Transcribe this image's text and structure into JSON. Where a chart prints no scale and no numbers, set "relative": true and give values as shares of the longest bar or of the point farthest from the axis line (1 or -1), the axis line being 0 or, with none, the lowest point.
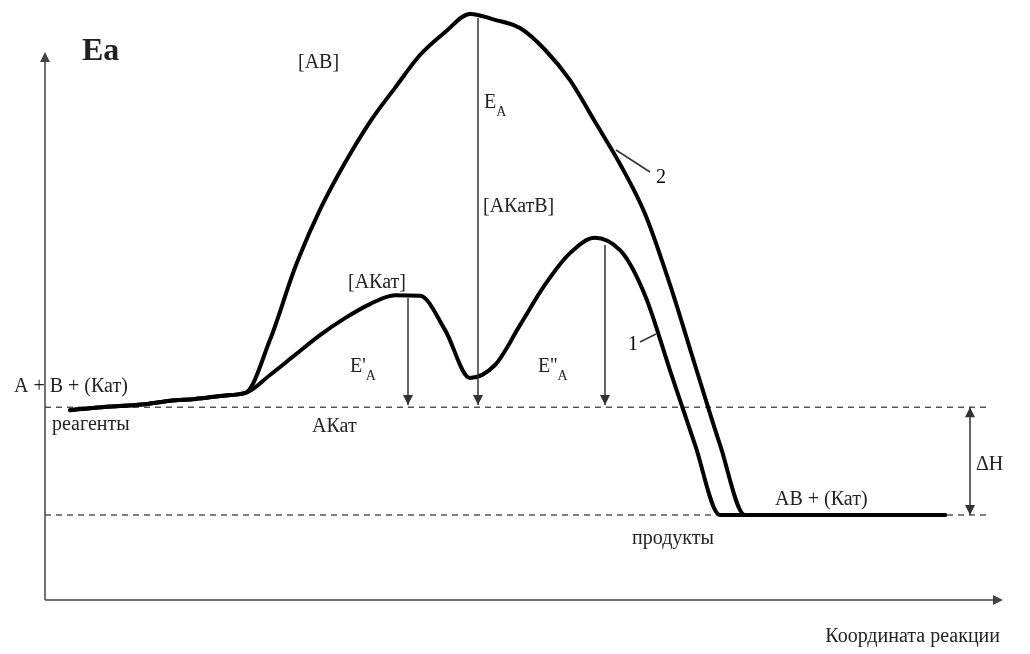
{
  "chart_data": {
    "type": "line",
    "relative": true,
    "ylabel": "Ea",
    "xlabel": "Координата реакции",
    "categories": [
      null,
      null,
      null,
      null,
      null,
      null,
      null,
      null,
      null,
      null,
      null,
      null,
      null,
      null,
      null,
      null,
      null,
      null,
      null,
      null,
      null,
      null,
      null,
      null,
      null,
      null,
      null,
      null,
      null,
      null,
      null,
      null,
      null,
      null,
      null,
      null
    ],
    "series": [
      {
        "name": "1",
        "color": "#000000",
        "values": [
          0.324,
          0.328,
          0.331,
          0.334,
          0.34,
          0.343,
          0.348,
          0.353,
          0.384,
          0.418,
          0.452,
          0.481,
          0.505,
          0.52,
          0.519,
          0.461,
          0.379,
          0.401,
          0.469,
          0.538,
          0.592,
          0.618,
          0.597,
          0.52,
          0.392,
          0.265,
          0.145,
          0.145,
          0.145,
          0.145,
          0.145,
          0.145,
          0.145,
          0.145,
          0.145,
          0.145
        ]
      },
      {
        "name": "2",
        "color": "#000000",
        "values": [
          0.324,
          0.328,
          0.331,
          0.334,
          0.34,
          0.343,
          0.348,
          0.353,
          0.444,
          0.567,
          0.666,
          0.746,
          0.816,
          0.874,
          0.93,
          0.969,
          1.0,
          0.99,
          0.976,
          0.939,
          0.887,
          0.816,
          0.744,
          0.659,
          0.538,
          0.401,
          0.265,
          0.145,
          0.145,
          0.145,
          0.145,
          0.145,
          0.145,
          0.145,
          0.145,
          0.145
        ]
      }
    ],
    "ref_lines": [
      {
        "axis": "y",
        "value": 0.329,
        "line_style": "dashed"
      },
      {
        "axis": "y",
        "value": 0.145,
        "line_style": "dashed"
      }
    ],
    "annotations": [
      "[АВ]",
      "E$_{A}$",
      "[АКатВ]",
      "[АКат]",
      "E'$_{A}$",
      "E''$_{A}$",
      "А + В + (Кат)",
      "реагенты",
      "АКат",
      "ΔH",
      "АВ + (Кат)",
      "продукты"
    ],
    "marker": "none",
    "line_style": "solid",
    "legend": false,
    "grid": false
  }
}
